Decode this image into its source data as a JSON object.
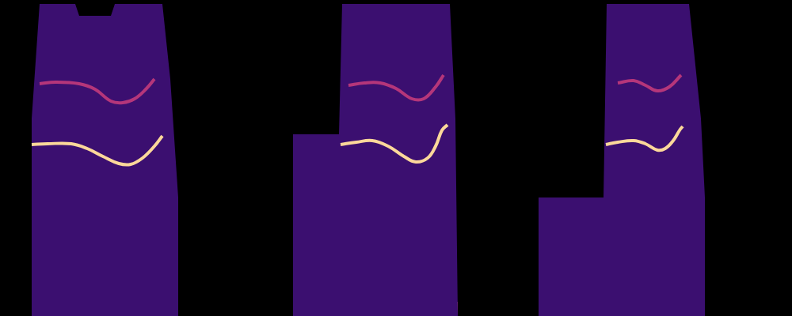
{
  "chart_data": {
    "type": "line",
    "tick_labels": false,
    "grid": false,
    "xlim": [
      0,
      1000
    ],
    "ylim": [
      0,
      400
    ],
    "series": [
      {
        "type": "area",
        "color": "#3b0f70",
        "x": [
          40,
          40,
          50,
          95,
          100,
          140,
          145,
          205,
          215,
          225,
          225
        ],
        "values": [
          0,
          250,
          395,
          395,
          380,
          380,
          395,
          395,
          300,
          150,
          0
        ]
      },
      {
        "type": "area",
        "color": "#3b0f70",
        "x": [
          370,
          370,
          428,
          432,
          568,
          575,
          578
        ],
        "values": [
          0,
          230,
          230,
          395,
          395,
          250,
          0
        ]
      },
      {
        "type": "area",
        "color": "#3b0f70",
        "x": [
          680,
          680,
          762,
          766,
          870,
          885,
          890,
          890
        ],
        "values": [
          0,
          150,
          150,
          395,
          395,
          250,
          150,
          0
        ]
      },
      {
        "type": "area",
        "color": "#d8576b",
        "x": [
          40,
          40,
          225,
          225
        ],
        "values": [
          0,
          18,
          18,
          0
        ]
      },
      {
        "type": "area",
        "color": "#d8576b",
        "x": [
          370,
          370,
          578,
          578
        ],
        "values": [
          0,
          18,
          18,
          0
        ]
      },
      {
        "type": "area",
        "color": "#d8576b",
        "x": [
          680,
          680,
          890,
          890
        ],
        "values": [
          0,
          18,
          18,
          0
        ]
      },
      {
        "type": "line",
        "color": "#b5367a",
        "x": [
          50,
          70,
          100,
          120,
          140,
          155,
          170,
          185,
          195
        ],
        "values": [
          294,
          296,
          294,
          287,
          272,
          270,
          275,
          288,
          300
        ]
      },
      {
        "type": "line",
        "color": "#b5367a",
        "x": [
          440,
          460,
          480,
          500,
          520,
          535,
          550,
          560
        ],
        "values": [
          292,
          295,
          295,
          288,
          275,
          275,
          290,
          305
        ]
      },
      {
        "type": "line",
        "color": "#b5367a",
        "x": [
          780,
          800,
          815,
          830,
          845,
          860
        ],
        "values": [
          295,
          298,
          292,
          285,
          290,
          305
        ]
      },
      {
        "type": "line",
        "color": "#fcd89a",
        "x": [
          40,
          60,
          90,
          110,
          130,
          150,
          165,
          180,
          195,
          205
        ],
        "values": [
          217,
          218,
          218,
          212,
          202,
          193,
          192,
          200,
          215,
          228
        ]
      },
      {
        "type": "line",
        "color": "#fcd89a",
        "x": [
          430,
          450,
          470,
          490,
          510,
          525,
          540,
          550,
          558,
          565
        ],
        "values": [
          217,
          220,
          222,
          215,
          202,
          195,
          200,
          215,
          235,
          242
        ]
      },
      {
        "type": "line",
        "color": "#fcd89a",
        "x": [
          765,
          780,
          800,
          815,
          830,
          840,
          850,
          858,
          862
        ],
        "values": [
          217,
          220,
          222,
          218,
          210,
          212,
          222,
          235,
          240
        ]
      }
    ]
  }
}
